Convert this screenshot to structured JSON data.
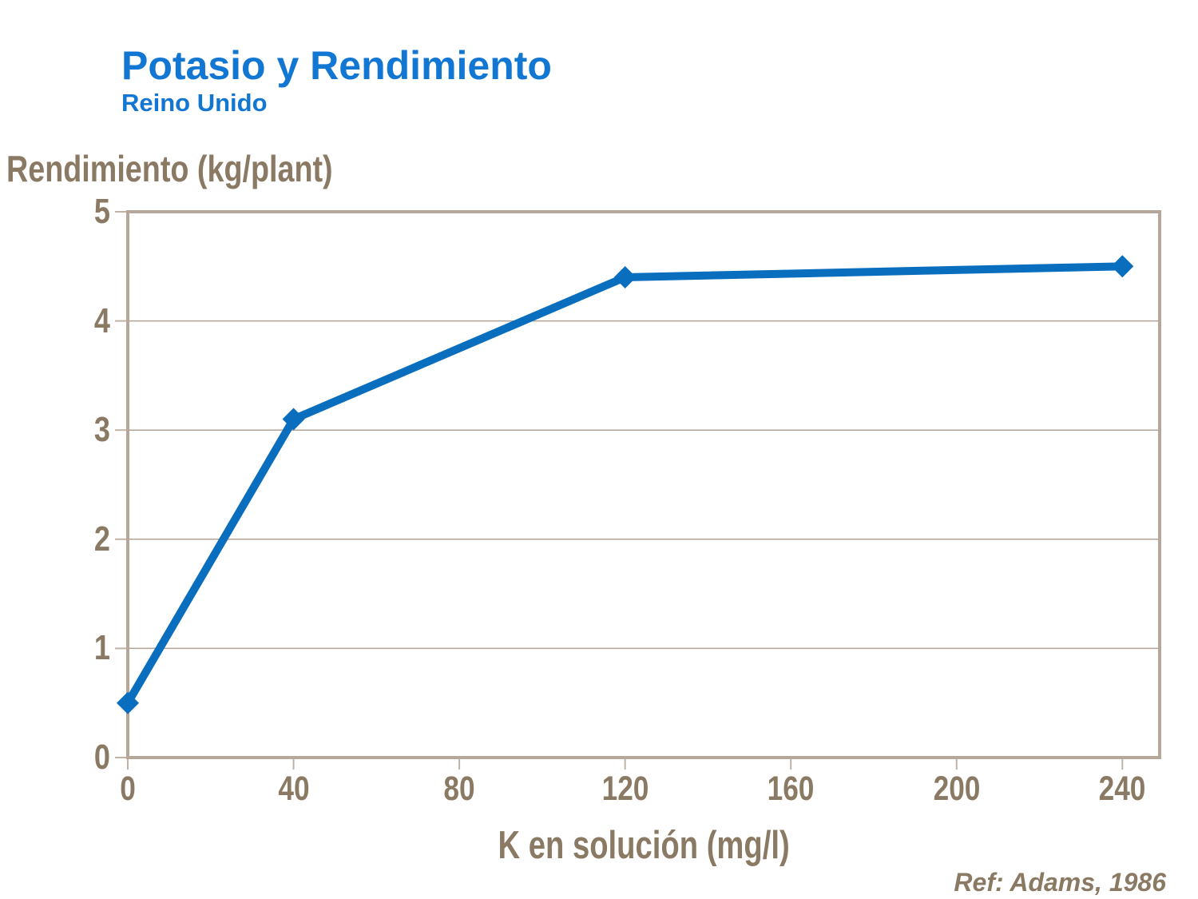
{
  "header": {
    "title": "Potasio y Rendimiento",
    "subtitle": "Reino Unido"
  },
  "chart_data": {
    "type": "line",
    "title": "Potasio y Rendimiento",
    "subtitle": "Reino Unido",
    "xlabel": "K en solución (mg/l)",
    "ylabel": "Rendimiento (kg/plant)",
    "series": [
      {
        "name": "Rendimiento",
        "x": [
          0,
          40,
          120,
          240
        ],
        "y": [
          0.5,
          3.1,
          4.4,
          4.5
        ]
      }
    ],
    "xlim": [
      0,
      249
    ],
    "ylim": [
      0,
      5
    ],
    "x_ticks": [
      0,
      40,
      80,
      120,
      160,
      200,
      240
    ],
    "y_ticks": [
      0,
      1,
      2,
      3,
      4,
      5
    ],
    "grid": "horizontal-only",
    "marker": "diamond",
    "legend": "none"
  },
  "colors": {
    "title_blue": "#1277d2",
    "line_blue": "#0a6ebe",
    "label_brown": "#8a7a64",
    "axis_tan": "#b5a79a",
    "grid_tan": "#b2a396"
  },
  "footer": {
    "reference": "Ref: Adams, 1986"
  }
}
